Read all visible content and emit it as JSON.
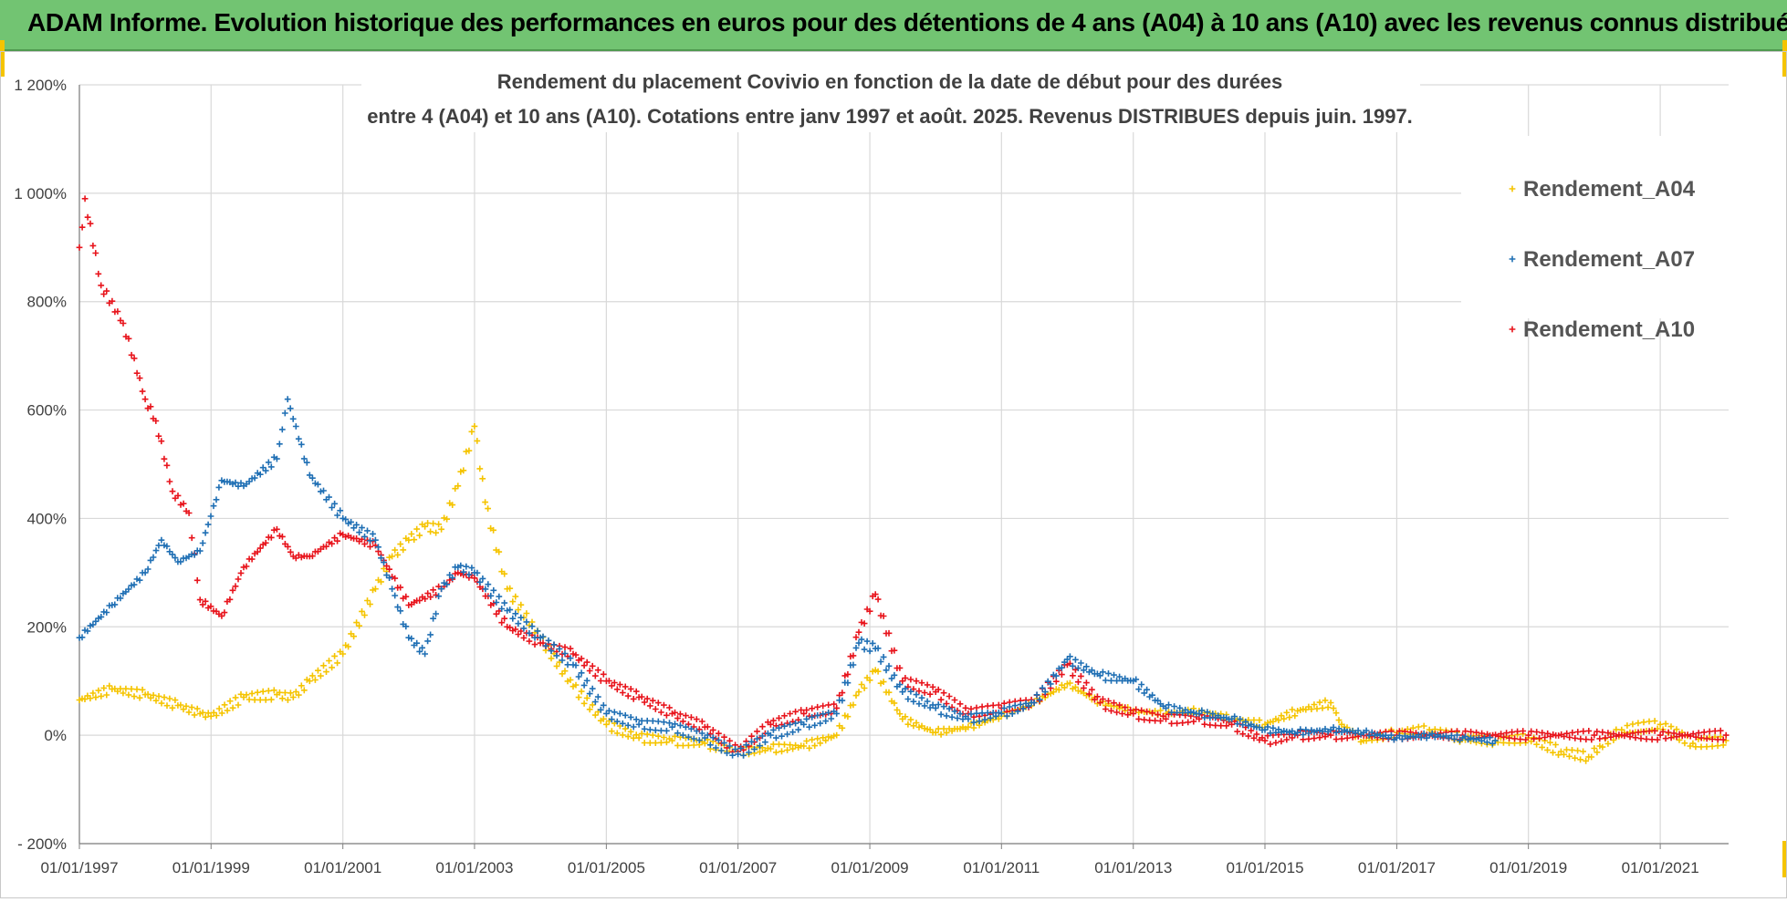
{
  "banner": {
    "title": "ADAM Informe. Evolution historique des performances en euros pour des détentions de 4 ans (A04) à 10 ans (A10) avec les revenus connus distribués"
  },
  "colors": {
    "banner_bg": "#72c472",
    "A04": "#f5c400",
    "A07": "#1f6fb4",
    "A10": "#e8141c",
    "grid": "#d9d9d9"
  },
  "chart_data": {
    "type": "scatter",
    "title_line1": "Rendement du placement Covivio en fonction de la date de début pour des durées",
    "title_line2": "entre 4 (A04) et 10 ans (A10).  Cotations entre janv 1997 et août. 2025. Revenus DISTRIBUES depuis juin. 1997.",
    "xlabel": "",
    "ylabel": "",
    "x_type": "date",
    "xlim": [
      "1997-01-01",
      "2022-01-15"
    ],
    "ylim": [
      -200,
      1200
    ],
    "y_unit": "%",
    "y_ticks": [
      -200,
      0,
      200,
      400,
      600,
      800,
      1000,
      1200
    ],
    "y_tick_labels": [
      "- 200%",
      "0%",
      "200%",
      "400%",
      "600%",
      "800%",
      "1 000%",
      "1 200%"
    ],
    "x_ticks": [
      "1997-01-01",
      "1999-01-01",
      "2001-01-01",
      "2003-01-01",
      "2005-01-01",
      "2007-01-01",
      "2009-01-01",
      "2011-01-01",
      "2013-01-01",
      "2015-01-01",
      "2017-01-01",
      "2019-01-01",
      "2021-01-01"
    ],
    "x_tick_labels": [
      "01/01/1997",
      "01/01/1999",
      "01/01/2001",
      "01/01/2003",
      "01/01/2005",
      "01/01/2007",
      "01/01/2009",
      "01/01/2011",
      "01/01/2013",
      "01/01/2015",
      "01/01/2017",
      "01/01/2019",
      "01/01/2021"
    ],
    "grid": true,
    "marker": "+",
    "legend_position": "top-right",
    "series": [
      {
        "name": "Rendement_A04",
        "color": "#f5c400",
        "points": [
          [
            "1997-01-01",
            65
          ],
          [
            "1997-07-01",
            85
          ],
          [
            "1998-01-01",
            75
          ],
          [
            "1998-07-01",
            55
          ],
          [
            "1998-11-01",
            40
          ],
          [
            "1999-01-01",
            35
          ],
          [
            "1999-07-01",
            70
          ],
          [
            "2000-01-01",
            75
          ],
          [
            "2000-04-01",
            70
          ],
          [
            "2000-07-01",
            100
          ],
          [
            "2001-01-01",
            150
          ],
          [
            "2001-07-01",
            270
          ],
          [
            "2001-10-01",
            330
          ],
          [
            "2002-01-01",
            360
          ],
          [
            "2002-04-01",
            385
          ],
          [
            "2002-07-01",
            380
          ],
          [
            "2002-10-01",
            460
          ],
          [
            "2003-01-01",
            570
          ],
          [
            "2003-03-01",
            430
          ],
          [
            "2003-07-01",
            270
          ],
          [
            "2004-01-01",
            180
          ],
          [
            "2004-07-01",
            90
          ],
          [
            "2005-01-01",
            20
          ],
          [
            "2005-07-01",
            -5
          ],
          [
            "2006-01-01",
            -10
          ],
          [
            "2006-07-01",
            -15
          ],
          [
            "2007-01-01",
            -30
          ],
          [
            "2007-07-01",
            -25
          ],
          [
            "2008-01-01",
            -20
          ],
          [
            "2008-07-01",
            0
          ],
          [
            "2008-11-01",
            80
          ],
          [
            "2009-02-01",
            120
          ],
          [
            "2009-07-01",
            30
          ],
          [
            "2010-01-01",
            5
          ],
          [
            "2010-07-01",
            15
          ],
          [
            "2011-01-01",
            35
          ],
          [
            "2011-07-01",
            60
          ],
          [
            "2012-01-01",
            95
          ],
          [
            "2012-07-01",
            60
          ],
          [
            "2013-01-01",
            45
          ],
          [
            "2013-07-01",
            40
          ],
          [
            "2014-01-01",
            45
          ],
          [
            "2014-07-01",
            30
          ],
          [
            "2015-01-01",
            20
          ],
          [
            "2015-07-01",
            45
          ],
          [
            "2016-01-01",
            60
          ],
          [
            "2016-03-01",
            20
          ],
          [
            "2016-07-01",
            -10
          ],
          [
            "2017-01-01",
            5
          ],
          [
            "2017-07-01",
            10
          ],
          [
            "2018-01-01",
            -5
          ],
          [
            "2018-07-01",
            -10
          ],
          [
            "2019-01-01",
            -5
          ],
          [
            "2019-07-01",
            -30
          ],
          [
            "2019-12-01",
            -40
          ],
          [
            "2020-02-01",
            -20
          ],
          [
            "2020-06-01",
            10
          ],
          [
            "2021-01-01",
            20
          ],
          [
            "2021-07-01",
            -15
          ],
          [
            "2022-01-01",
            -10
          ]
        ]
      },
      {
        "name": "Rendement_A07",
        "color": "#1f6fb4",
        "points": [
          [
            "1997-01-01",
            180
          ],
          [
            "1997-07-01",
            240
          ],
          [
            "1998-01-01",
            300
          ],
          [
            "1998-04-01",
            360
          ],
          [
            "1998-07-01",
            320
          ],
          [
            "1998-11-01",
            340
          ],
          [
            "1999-03-01",
            470
          ],
          [
            "1999-07-01",
            460
          ],
          [
            "2000-01-01",
            510
          ],
          [
            "2000-03-01",
            620
          ],
          [
            "2000-07-01",
            480
          ],
          [
            "2001-01-01",
            400
          ],
          [
            "2001-07-01",
            360
          ],
          [
            "2001-10-01",
            270
          ],
          [
            "2002-01-01",
            180
          ],
          [
            "2002-04-01",
            150
          ],
          [
            "2002-07-01",
            270
          ],
          [
            "2002-10-01",
            310
          ],
          [
            "2003-01-01",
            300
          ],
          [
            "2003-07-01",
            230
          ],
          [
            "2004-01-01",
            180
          ],
          [
            "2004-07-01",
            130
          ],
          [
            "2005-01-01",
            40
          ],
          [
            "2005-07-01",
            20
          ],
          [
            "2006-01-01",
            15
          ],
          [
            "2006-07-01",
            -5
          ],
          [
            "2007-01-01",
            -35
          ],
          [
            "2007-07-01",
            0
          ],
          [
            "2008-01-01",
            20
          ],
          [
            "2008-07-01",
            40
          ],
          [
            "2008-11-01",
            170
          ],
          [
            "2009-02-01",
            160
          ],
          [
            "2009-07-01",
            80
          ],
          [
            "2010-01-01",
            50
          ],
          [
            "2010-07-01",
            30
          ],
          [
            "2011-01-01",
            40
          ],
          [
            "2011-07-01",
            60
          ],
          [
            "2012-01-01",
            140
          ],
          [
            "2012-07-01",
            110
          ],
          [
            "2013-01-01",
            100
          ],
          [
            "2013-07-01",
            50
          ],
          [
            "2014-01-01",
            40
          ],
          [
            "2014-07-01",
            30
          ],
          [
            "2015-01-01",
            10
          ],
          [
            "2015-07-01",
            5
          ],
          [
            "2016-01-01",
            10
          ],
          [
            "2016-07-01",
            5
          ],
          [
            "2017-01-01",
            -5
          ],
          [
            "2017-07-01",
            0
          ],
          [
            "2018-01-01",
            -5
          ],
          [
            "2018-07-01",
            -10
          ]
        ]
      },
      {
        "name": "Rendement_A10",
        "color": "#e8141c",
        "points": [
          [
            "1997-01-01",
            900
          ],
          [
            "1997-02-01",
            990
          ],
          [
            "1997-05-01",
            830
          ],
          [
            "1997-09-01",
            760
          ],
          [
            "1998-01-01",
            620
          ],
          [
            "1998-03-01",
            580
          ],
          [
            "1998-06-01",
            450
          ],
          [
            "1998-09-01",
            410
          ],
          [
            "1998-11-01",
            250
          ],
          [
            "1999-03-01",
            220
          ],
          [
            "1999-07-01",
            310
          ],
          [
            "2000-01-01",
            380
          ],
          [
            "2000-04-01",
            330
          ],
          [
            "2000-07-01",
            330
          ],
          [
            "2001-01-01",
            370
          ],
          [
            "2001-07-01",
            350
          ],
          [
            "2002-01-01",
            240
          ],
          [
            "2002-07-01",
            270
          ],
          [
            "2002-10-01",
            300
          ],
          [
            "2003-01-01",
            290
          ],
          [
            "2003-07-01",
            200
          ],
          [
            "2004-01-01",
            170
          ],
          [
            "2004-07-01",
            150
          ],
          [
            "2005-01-01",
            100
          ],
          [
            "2005-07-01",
            70
          ],
          [
            "2006-01-01",
            40
          ],
          [
            "2006-07-01",
            15
          ],
          [
            "2007-01-01",
            -30
          ],
          [
            "2007-07-01",
            20
          ],
          [
            "2008-01-01",
            40
          ],
          [
            "2008-07-01",
            50
          ],
          [
            "2008-11-01",
            190
          ],
          [
            "2009-02-01",
            260
          ],
          [
            "2009-07-01",
            100
          ],
          [
            "2010-01-01",
            80
          ],
          [
            "2010-07-01",
            40
          ],
          [
            "2011-01-01",
            50
          ],
          [
            "2011-07-01",
            60
          ],
          [
            "2012-01-01",
            130
          ],
          [
            "2012-07-01",
            60
          ],
          [
            "2013-01-01",
            40
          ],
          [
            "2013-07-01",
            30
          ],
          [
            "2014-01-01",
            30
          ],
          [
            "2014-07-01",
            20
          ],
          [
            "2015-01-01",
            -10
          ],
          [
            "2015-07-01",
            0
          ],
          [
            "2016-01-01",
            0
          ],
          [
            "2017-01-01",
            0
          ],
          [
            "2018-01-01",
            0
          ],
          [
            "2019-01-01",
            0
          ],
          [
            "2020-01-01",
            0
          ],
          [
            "2021-01-01",
            0
          ],
          [
            "2022-01-01",
            0
          ]
        ]
      }
    ]
  }
}
